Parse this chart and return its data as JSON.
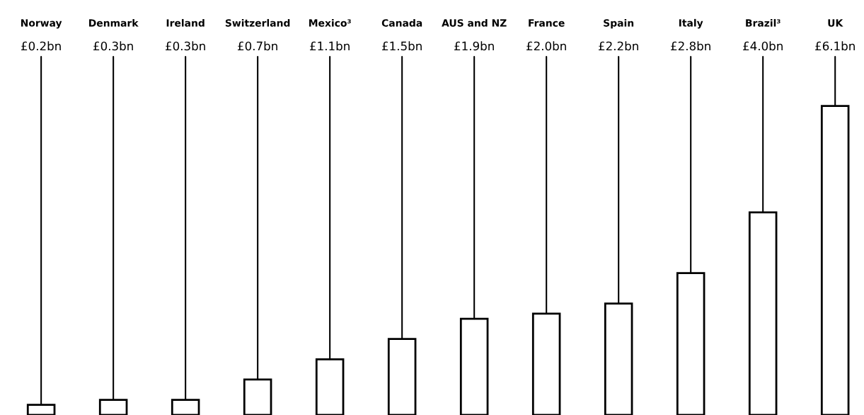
{
  "chart_data": {
    "type": "bar",
    "categories": [
      "Norway",
      "Denmark",
      "Ireland",
      "Switzerland",
      "Mexico³",
      "Canada",
      "AUS and NZ",
      "France",
      "Spain",
      "Italy",
      "Brazil³",
      "UK"
    ],
    "values": [
      0.2,
      0.3,
      0.3,
      0.7,
      1.1,
      1.5,
      1.9,
      2.0,
      2.2,
      2.8,
      4.0,
      6.1
    ],
    "value_labels": [
      "£0.2bn",
      "£0.3bn",
      "£0.3bn",
      "£0.7bn",
      "£1.1bn",
      "£1.5bn",
      "£1.9bn",
      "£2.0bn",
      "£2.2bn",
      "£2.8bn",
      "£4.0bn",
      "£6.1bn"
    ],
    "color": "#000000",
    "tick_labels": "x",
    "grid": false,
    "legend": false
  }
}
